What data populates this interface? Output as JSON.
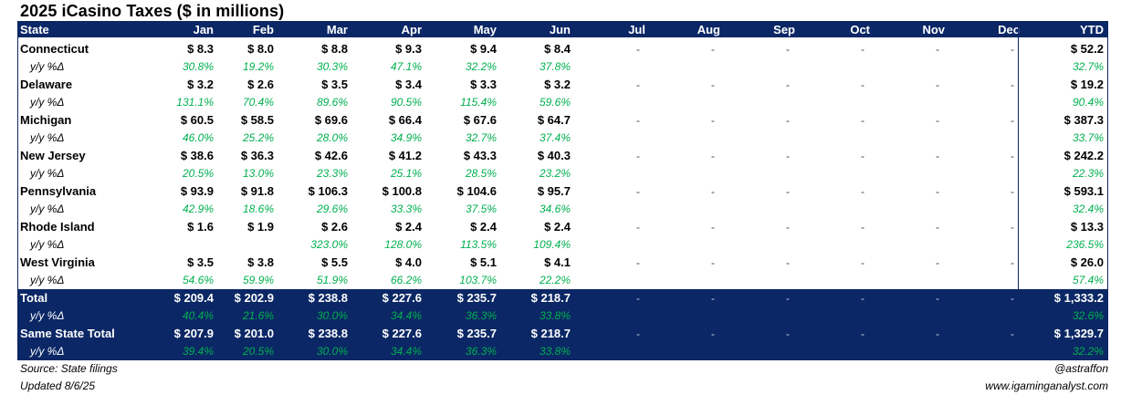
{
  "title": "2025 iCasino Taxes ($ in millions)",
  "headers": [
    "State",
    "Jan",
    "Feb",
    "Mar",
    "Apr",
    "May",
    "Jun",
    "Jul",
    "Aug",
    "Sep",
    "Oct",
    "Nov",
    "Dec",
    "YTD"
  ],
  "sub_label": "y/y %Δ",
  "dash": "-",
  "states": [
    {
      "name": "Connecticut",
      "values": [
        "$ 8.3",
        "$ 8.0",
        "$ 8.8",
        "$ 9.3",
        "$ 9.4",
        "$ 8.4"
      ],
      "pcts": [
        "30.8%",
        "19.2%",
        "30.3%",
        "47.1%",
        "32.2%",
        "37.8%"
      ],
      "ytd": "$ 52.2",
      "ytd_pct": "32.7%"
    },
    {
      "name": "Delaware",
      "values": [
        "$ 3.2",
        "$ 2.6",
        "$ 3.5",
        "$ 3.4",
        "$ 3.3",
        "$ 3.2"
      ],
      "pcts": [
        "131.1%",
        "70.4%",
        "89.6%",
        "90.5%",
        "115.4%",
        "59.6%"
      ],
      "ytd": "$ 19.2",
      "ytd_pct": "90.4%"
    },
    {
      "name": "Michigan",
      "values": [
        "$ 60.5",
        "$ 58.5",
        "$ 69.6",
        "$ 66.4",
        "$ 67.6",
        "$ 64.7"
      ],
      "pcts": [
        "46.0%",
        "25.2%",
        "28.0%",
        "34.9%",
        "32.7%",
        "37.4%"
      ],
      "ytd": "$ 387.3",
      "ytd_pct": "33.7%"
    },
    {
      "name": "New Jersey",
      "values": [
        "$ 38.6",
        "$ 36.3",
        "$ 42.6",
        "$ 41.2",
        "$ 43.3",
        "$ 40.3"
      ],
      "pcts": [
        "20.5%",
        "13.0%",
        "23.3%",
        "25.1%",
        "28.5%",
        "23.2%"
      ],
      "ytd": "$ 242.2",
      "ytd_pct": "22.3%"
    },
    {
      "name": "Pennsylvania",
      "values": [
        "$ 93.9",
        "$ 91.8",
        "$ 106.3",
        "$ 100.8",
        "$ 104.6",
        "$ 95.7"
      ],
      "pcts": [
        "42.9%",
        "18.6%",
        "29.6%",
        "33.3%",
        "37.5%",
        "34.6%"
      ],
      "ytd": "$ 593.1",
      "ytd_pct": "32.4%"
    },
    {
      "name": "Rhode Island",
      "values": [
        "$ 1.6",
        "$ 1.9",
        "$ 2.6",
        "$ 2.4",
        "$ 2.4",
        "$ 2.4"
      ],
      "pcts": [
        "",
        "",
        "323.0%",
        "128.0%",
        "113.5%",
        "109.4%"
      ],
      "ytd": "$ 13.3",
      "ytd_pct": "236.5%"
    },
    {
      "name": "West Virginia",
      "values": [
        "$ 3.5",
        "$ 3.8",
        "$ 5.5",
        "$ 4.0",
        "$ 5.1",
        "$ 4.1"
      ],
      "pcts": [
        "54.6%",
        "59.9%",
        "51.9%",
        "66.2%",
        "103.7%",
        "22.2%"
      ],
      "ytd": "$ 26.0",
      "ytd_pct": "57.4%"
    }
  ],
  "totals": [
    {
      "name": "Total",
      "values": [
        "$ 209.4",
        "$ 202.9",
        "$ 238.8",
        "$ 227.6",
        "$ 235.7",
        "$ 218.7"
      ],
      "pcts": [
        "40.4%",
        "21.6%",
        "30.0%",
        "34.4%",
        "36.3%",
        "33.8%"
      ],
      "ytd": "$ 1,333.2",
      "ytd_pct": "32.6%"
    },
    {
      "name": "Same State Total",
      "values": [
        "$ 207.9",
        "$ 201.0",
        "$ 238.8",
        "$ 227.6",
        "$ 235.7",
        "$ 218.7"
      ],
      "pcts": [
        "39.4%",
        "20.5%",
        "30.0%",
        "34.4%",
        "36.3%",
        "33.8%"
      ],
      "ytd": "$ 1,329.7",
      "ytd_pct": "32.2%"
    }
  ],
  "footer": {
    "source": "Source: State filings",
    "updated": "Updated 8/6/25",
    "handle": "@astraffon",
    "site": "www.igaminganalyst.com"
  },
  "colors": {
    "header_bg": "#0b2765",
    "positive": "#00b050"
  }
}
